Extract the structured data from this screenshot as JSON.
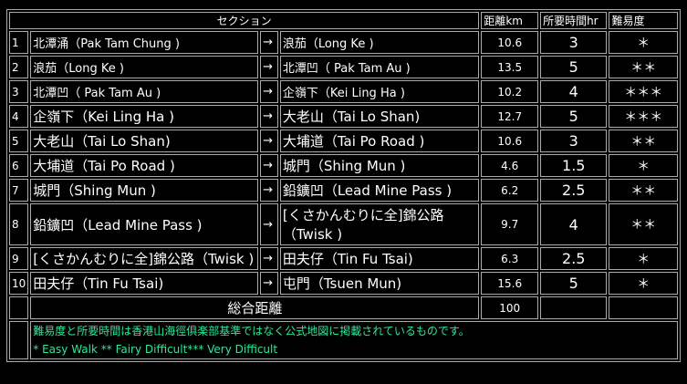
{
  "header": {
    "section": "セクション",
    "distance": "距離km",
    "time": "所要時間hr",
    "difficulty": "難易度"
  },
  "rows": [
    {
      "no": "1",
      "from": "北潭涌（Pak Tam Chung )",
      "arrow": "→",
      "to": "浪茄（Long Ke )",
      "km": "10.6",
      "hr": "3",
      "diff": "＊"
    },
    {
      "no": "2",
      "from": "浪茄（Long Ke )",
      "arrow": "→",
      "to": "北潭凹（ Pak Tam Au )",
      "km": "13.5",
      "hr": "5",
      "diff": "＊＊"
    },
    {
      "no": "3",
      "from": "北潭凹（ Pak Tam Au )",
      "arrow": "→",
      "to": "企嶺下（Kei Ling Ha )",
      "km": "10.2",
      "hr": "4",
      "diff": "＊＊＊"
    },
    {
      "no": "4",
      "from": "企嶺下（Kei Ling Ha )",
      "arrow": "→",
      "to": "大老山（Tai Lo Shan)",
      "km": "12.7",
      "hr": "5",
      "diff": "＊＊＊"
    },
    {
      "no": "5",
      "from": "大老山（Tai Lo Shan)",
      "arrow": "→",
      "to": "大埔道（Tai Po Road )",
      "km": "10.6",
      "hr": "3",
      "diff": "＊＊"
    },
    {
      "no": "6",
      "from": "大埔道（Tai Po Road )",
      "arrow": "→",
      "to": "城門（Shing Mun )",
      "km": "4.6",
      "hr": "1.5",
      "diff": "＊"
    },
    {
      "no": "7",
      "from": "城門（Shing Mun )",
      "arrow": "→",
      "to": "鉛鑛凹（Lead Mine Pass )",
      "km": "6.2",
      "hr": "2.5",
      "diff": "＊＊"
    },
    {
      "no": "8",
      "from": "鉛鑛凹（Lead Mine Pass )",
      "arrow": "→",
      "to": "[くさかんむりに全]錦公路（Twisk )",
      "km": "9.7",
      "hr": "4",
      "diff": "＊＊"
    },
    {
      "no": "9",
      "from": "[くさかんむりに全]錦公路（Twisk )",
      "arrow": "→",
      "to": "田夫仔（Tin Fu Tsai)",
      "km": "6.3",
      "hr": "2.5",
      "diff": "＊"
    },
    {
      "no": "10",
      "from": "田夫仔（Tin Fu Tsai)",
      "arrow": "→",
      "to": "屯門（Tsuen Mun)",
      "km": "15.6",
      "hr": "5",
      "diff": "＊"
    }
  ],
  "total": {
    "label": "総合距離",
    "km": "100"
  },
  "notes": {
    "line1": "難易度と所要時間は香港山海徑俱楽部基準ではなく公式地図に掲載されているものです。",
    "line2": "* Easy Walk ** Fairy Difficult*** Very Difficult"
  }
}
